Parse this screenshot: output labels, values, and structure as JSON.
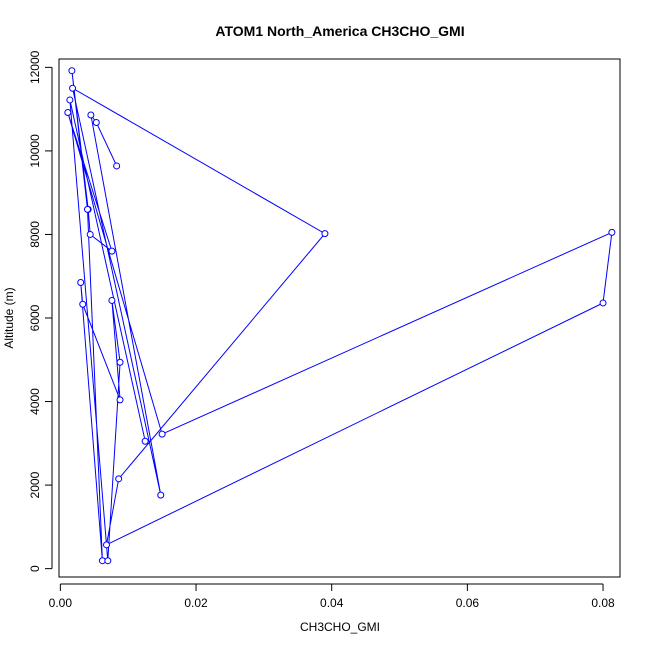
{
  "chart_data": {
    "type": "line",
    "title": "ATOM1 North_America CH3CHO_GMI",
    "xlabel": "CH3CHO_GMI",
    "ylabel": "Altitude (m)",
    "xlim": [
      -0.0002,
      0.0825
    ],
    "ylim": [
      -200,
      12200
    ],
    "xticks": [
      0.0,
      0.02,
      0.04,
      0.06,
      0.08
    ],
    "xtick_labels": [
      "0.00",
      "0.02",
      "0.04",
      "0.06",
      "0.08"
    ],
    "yticks": [
      0,
      2000,
      4000,
      6000,
      8000,
      10000,
      12000
    ],
    "ytick_labels": [
      "0",
      "2000",
      "4000",
      "6000",
      "8000",
      "10000",
      "12000"
    ],
    "grid": false,
    "series": [
      {
        "color": "#0000ff",
        "marker": "open-circle",
        "points": [
          {
            "x": 0.0083,
            "y": 9640
          },
          {
            "x": 0.0053,
            "y": 10680
          },
          {
            "x": 0.0045,
            "y": 10860
          },
          {
            "x": 0.0148,
            "y": 1760
          },
          {
            "x": 0.0018,
            "y": 11500
          },
          {
            "x": 0.039,
            "y": 8020
          },
          {
            "x": 0.0086,
            "y": 2150
          },
          {
            "x": 0.0068,
            "y": 570
          },
          {
            "x": 0.08,
            "y": 6360
          },
          {
            "x": 0.0813,
            "y": 8050
          },
          {
            "x": 0.015,
            "y": 3220
          },
          {
            "x": 0.0011,
            "y": 10920
          },
          {
            "x": 0.0076,
            "y": 7600
          },
          {
            "x": 0.0044,
            "y": 8000
          },
          {
            "x": 0.0041,
            "y": 8600
          },
          {
            "x": 0.0017,
            "y": 11920
          },
          {
            "x": 0.004,
            "y": 8600
          },
          {
            "x": 0.0062,
            "y": 190
          },
          {
            "x": 0.003,
            "y": 6850
          },
          {
            "x": 0.0033,
            "y": 6330
          },
          {
            "x": 0.0088,
            "y": 4040
          },
          {
            "x": 0.0076,
            "y": 6420
          },
          {
            "x": 0.0088,
            "y": 4940
          },
          {
            "x": 0.007,
            "y": 190
          },
          {
            "x": 0.0014,
            "y": 11220
          },
          {
            "x": 0.0125,
            "y": 3050
          }
        ]
      }
    ]
  }
}
